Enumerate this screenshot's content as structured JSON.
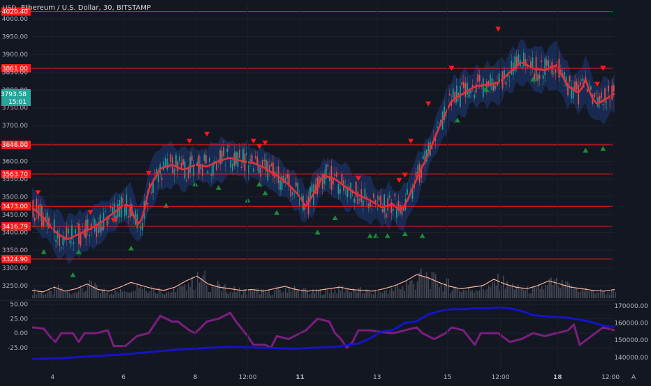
{
  "header": {
    "title": "Ethereum / U.S. Dollar, 30, BITSTAMP",
    "currency": "USD",
    "price": "3793.58",
    "countdown": "15:01"
  },
  "colors": {
    "background": "#131722",
    "level_line": "#ff1a1a",
    "price_pill": "#26a69a",
    "ma": "#e0323c",
    "band": "#1e3a78",
    "up_candle": "#26a69a",
    "down_candle": "#ef5350",
    "sell_marker": "#ff1a1a",
    "buy_marker": "#1b8a3a",
    "osc_series": "#7b1f7d",
    "volume_series": "#1414c8",
    "vol_ma": "#ffb199"
  },
  "chart_data": [
    {
      "type": "line",
      "pane": "price",
      "y_axis": {
        "ticks": [
          3250,
          3300,
          3350,
          3400,
          3450,
          3500,
          3550,
          3600,
          3650,
          3700,
          3750,
          3800,
          3850,
          3900,
          3950,
          4000
        ],
        "range": [
          3215,
          4045
        ]
      },
      "x_axis": {
        "ticks": [
          "4",
          "6",
          "8",
          "12:00",
          "11",
          "13",
          "15",
          "12:00",
          "18",
          "12:00"
        ]
      },
      "levels": [
        {
          "value": 4020.4,
          "label": "4020.40"
        },
        {
          "value": 3861.0,
          "label": "3861.00"
        },
        {
          "value": 3646.0,
          "label": "3646.00"
        },
        {
          "value": 3563.7,
          "label": "3563.70"
        },
        {
          "value": 3473.0,
          "label": "3473.00"
        },
        {
          "value": 3416.79,
          "label": "3416.79"
        },
        {
          "value": 3324.9,
          "label": "3324.90"
        }
      ],
      "last_price": 3793.58,
      "ma_path": [
        [
          0,
          3470
        ],
        [
          0.02,
          3440
        ],
        [
          0.04,
          3400
        ],
        [
          0.06,
          3380
        ],
        [
          0.08,
          3395
        ],
        [
          0.1,
          3410
        ],
        [
          0.12,
          3430
        ],
        [
          0.14,
          3455
        ],
        [
          0.16,
          3480
        ],
        [
          0.17,
          3470
        ],
        [
          0.18,
          3420
        ],
        [
          0.19,
          3440
        ],
        [
          0.2,
          3520
        ],
        [
          0.22,
          3580
        ],
        [
          0.24,
          3590
        ],
        [
          0.26,
          3575
        ],
        [
          0.28,
          3590
        ],
        [
          0.3,
          3585
        ],
        [
          0.32,
          3600
        ],
        [
          0.34,
          3610
        ],
        [
          0.36,
          3600
        ],
        [
          0.38,
          3595
        ],
        [
          0.4,
          3580
        ],
        [
          0.42,
          3560
        ],
        [
          0.44,
          3535
        ],
        [
          0.46,
          3500
        ],
        [
          0.47,
          3470
        ],
        [
          0.48,
          3500
        ],
        [
          0.5,
          3560
        ],
        [
          0.52,
          3550
        ],
        [
          0.54,
          3525
        ],
        [
          0.56,
          3505
        ],
        [
          0.58,
          3490
        ],
        [
          0.6,
          3470
        ],
        [
          0.62,
          3480
        ],
        [
          0.63,
          3460
        ],
        [
          0.64,
          3475
        ],
        [
          0.66,
          3550
        ],
        [
          0.68,
          3620
        ],
        [
          0.7,
          3700
        ],
        [
          0.72,
          3770
        ],
        [
          0.74,
          3790
        ],
        [
          0.76,
          3810
        ],
        [
          0.78,
          3815
        ],
        [
          0.8,
          3820
        ],
        [
          0.82,
          3850
        ],
        [
          0.84,
          3880
        ],
        [
          0.86,
          3860
        ],
        [
          0.88,
          3855
        ],
        [
          0.9,
          3870
        ],
        [
          0.92,
          3810
        ],
        [
          0.94,
          3790
        ],
        [
          0.95,
          3830
        ],
        [
          0.96,
          3780
        ],
        [
          0.97,
          3760
        ],
        [
          0.98,
          3770
        ],
        [
          1.0,
          3790
        ]
      ],
      "band_halfwidth": 55,
      "sell_markers": [
        [
          0.01,
          3510
        ],
        [
          0.1,
          3455
        ],
        [
          0.14,
          3432
        ],
        [
          0.2,
          3565
        ],
        [
          0.27,
          3655
        ],
        [
          0.3,
          3675
        ],
        [
          0.38,
          3655
        ],
        [
          0.39,
          3640
        ],
        [
          0.4,
          3650
        ],
        [
          0.56,
          3550
        ],
        [
          0.63,
          3545
        ],
        [
          0.64,
          3560
        ],
        [
          0.65,
          3655
        ],
        [
          0.68,
          3760
        ],
        [
          0.72,
          3860
        ],
        [
          0.8,
          3970
        ],
        [
          0.97,
          3815
        ],
        [
          0.98,
          3860
        ]
      ],
      "buy_markers": [
        [
          0.02,
          3345
        ],
        [
          0.07,
          3280
        ],
        [
          0.08,
          3345
        ],
        [
          0.17,
          3355
        ],
        [
          0.23,
          3475
        ],
        [
          0.28,
          3535
        ],
        [
          0.32,
          3525
        ],
        [
          0.37,
          3490
        ],
        [
          0.39,
          3535
        ],
        [
          0.4,
          3510
        ],
        [
          0.42,
          3455
        ],
        [
          0.49,
          3400
        ],
        [
          0.52,
          3440
        ],
        [
          0.58,
          3390
        ],
        [
          0.59,
          3390
        ],
        [
          0.61,
          3390
        ],
        [
          0.64,
          3395
        ],
        [
          0.67,
          3390
        ],
        [
          0.73,
          3715
        ],
        [
          0.78,
          3800
        ],
        [
          0.86,
          3830
        ],
        [
          0.95,
          3630
        ],
        [
          0.98,
          3635
        ]
      ]
    },
    {
      "type": "area",
      "pane": "volume",
      "name": "",
      "values": [
        10,
        8,
        14,
        9,
        12,
        18,
        11,
        9,
        14,
        20,
        16,
        12,
        10,
        14,
        22,
        28,
        18,
        14,
        12,
        10,
        11,
        9,
        12,
        15,
        11,
        9,
        10,
        12,
        14,
        11,
        10,
        9,
        12,
        16,
        22,
        30,
        26,
        20,
        15,
        12,
        14,
        16,
        24,
        18,
        14,
        12,
        16,
        22,
        18,
        14,
        12,
        10,
        9,
        11
      ]
    },
    {
      "type": "line",
      "pane": "indicator",
      "y_axis_left": {
        "ticks": [
          "50.00",
          "25.00",
          "0.00",
          "-25.00"
        ],
        "range": [
          -62,
          53
        ]
      },
      "y_axis_right": {
        "ticks": [
          "170000.00",
          "160000.00",
          "150000.00",
          "140000.00"
        ],
        "range": [
          133000,
          172000
        ]
      },
      "series": [
        {
          "name": "",
          "axis": "left",
          "values": [
            [
              0.0,
              10
            ],
            [
              0.02,
              8
            ],
            [
              0.03,
              -5
            ],
            [
              0.04,
              -15
            ],
            [
              0.05,
              0
            ],
            [
              0.07,
              0
            ],
            [
              0.08,
              -15
            ],
            [
              0.09,
              0
            ],
            [
              0.11,
              0
            ],
            [
              0.13,
              5
            ],
            [
              0.14,
              -22
            ],
            [
              0.16,
              -22
            ],
            [
              0.18,
              -5
            ],
            [
              0.2,
              0
            ],
            [
              0.22,
              30
            ],
            [
              0.24,
              20
            ],
            [
              0.25,
              20
            ],
            [
              0.27,
              5
            ],
            [
              0.28,
              0
            ],
            [
              0.3,
              20
            ],
            [
              0.32,
              25
            ],
            [
              0.34,
              35
            ],
            [
              0.35,
              20
            ],
            [
              0.37,
              -5
            ],
            [
              0.38,
              -20
            ],
            [
              0.4,
              -20
            ],
            [
              0.41,
              -25
            ],
            [
              0.42,
              -5
            ],
            [
              0.44,
              -10
            ],
            [
              0.46,
              0
            ],
            [
              0.47,
              5
            ],
            [
              0.49,
              25
            ],
            [
              0.51,
              20
            ],
            [
              0.52,
              0
            ],
            [
              0.53,
              -10
            ],
            [
              0.54,
              -25
            ],
            [
              0.55,
              -15
            ],
            [
              0.56,
              5
            ],
            [
              0.58,
              5
            ],
            [
              0.6,
              2
            ],
            [
              0.62,
              0
            ],
            [
              0.64,
              5
            ],
            [
              0.66,
              10
            ],
            [
              0.67,
              0
            ],
            [
              0.69,
              -10
            ],
            [
              0.71,
              0
            ],
            [
              0.72,
              10
            ],
            [
              0.74,
              5
            ],
            [
              0.76,
              -20
            ],
            [
              0.77,
              0
            ],
            [
              0.8,
              0
            ],
            [
              0.82,
              -15
            ],
            [
              0.84,
              -10
            ],
            [
              0.86,
              0
            ],
            [
              0.88,
              -5
            ],
            [
              0.9,
              0
            ],
            [
              0.92,
              5
            ],
            [
              0.93,
              15
            ],
            [
              0.94,
              -20
            ],
            [
              0.96,
              -5
            ],
            [
              0.98,
              10
            ],
            [
              1.0,
              5
            ]
          ]
        },
        {
          "name": "",
          "axis": "right",
          "values": [
            [
              0.0,
              139000
            ],
            [
              0.05,
              139500
            ],
            [
              0.1,
              140500
            ],
            [
              0.15,
              141500
            ],
            [
              0.2,
              143000
            ],
            [
              0.25,
              144500
            ],
            [
              0.3,
              145500
            ],
            [
              0.35,
              146000
            ],
            [
              0.4,
              145500
            ],
            [
              0.45,
              145000
            ],
            [
              0.48,
              145500
            ],
            [
              0.52,
              146000
            ],
            [
              0.56,
              148000
            ],
            [
              0.58,
              151000
            ],
            [
              0.6,
              155000
            ],
            [
              0.62,
              156000
            ],
            [
              0.64,
              160000
            ],
            [
              0.66,
              161000
            ],
            [
              0.68,
              165000
            ],
            [
              0.7,
              167000
            ],
            [
              0.72,
              168000
            ],
            [
              0.74,
              168000
            ],
            [
              0.76,
              168500
            ],
            [
              0.78,
              168500
            ],
            [
              0.8,
              169000
            ],
            [
              0.82,
              168500
            ],
            [
              0.84,
              167000
            ],
            [
              0.86,
              164500
            ],
            [
              0.88,
              164000
            ],
            [
              0.9,
              163500
            ],
            [
              0.92,
              163000
            ],
            [
              0.94,
              162000
            ],
            [
              0.96,
              160500
            ],
            [
              0.98,
              158500
            ],
            [
              1.0,
              157500
            ]
          ]
        }
      ]
    }
  ]
}
